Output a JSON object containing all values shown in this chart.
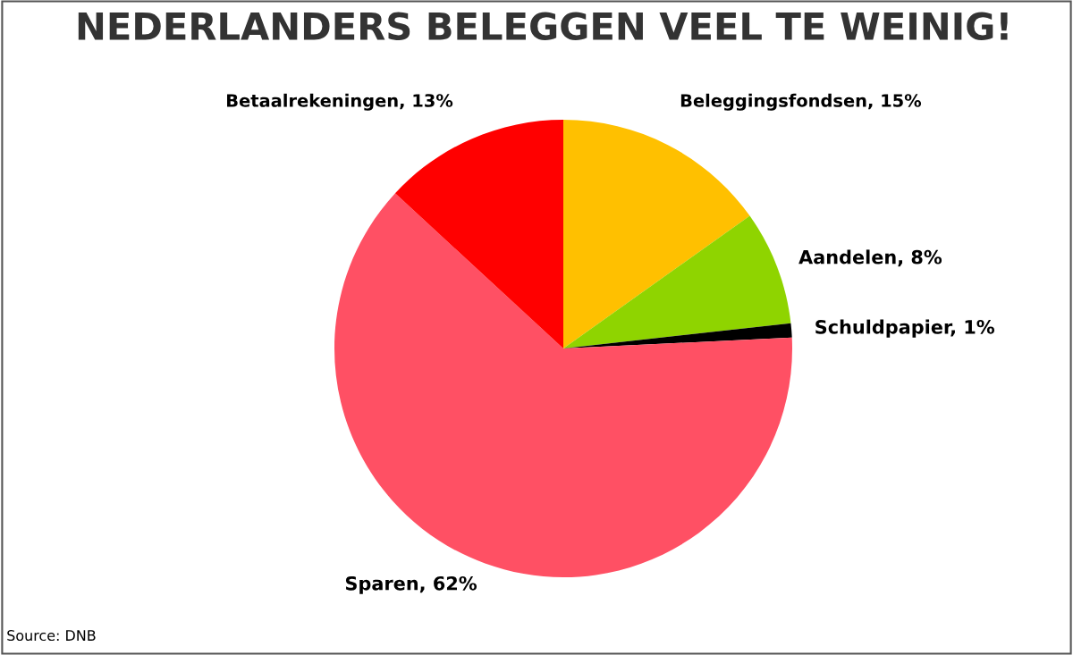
{
  "chart_data": {
    "type": "pie",
    "title": "NEDERLANDERS BELEGGEN VEEL TE WEINIG!",
    "categories": [
      "Beleggingsfondsen",
      "Aandelen",
      "Schuldpapier",
      "Sparen",
      "Betaalrekeningen"
    ],
    "values": [
      15,
      8,
      1,
      62,
      13
    ],
    "value_labels": [
      "15%",
      "8%",
      "1%",
      "62%",
      "13%"
    ],
    "colors": [
      "#ffc000",
      "#8fd400",
      "#000000",
      "#ff5064",
      "#ff0000"
    ],
    "annotations": [
      "Source: DNB"
    ]
  }
}
